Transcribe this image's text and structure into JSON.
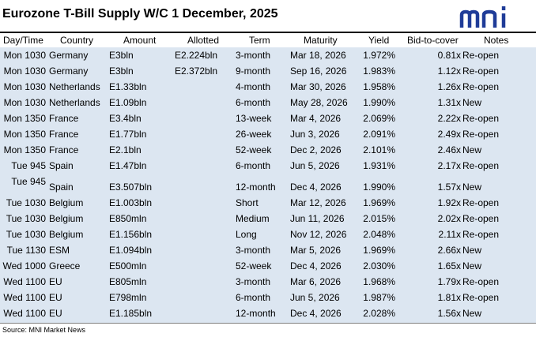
{
  "title": "Eurozone T-Bill Supply W/C 1 December, 2025",
  "logo": {
    "text": "mni",
    "color": "#1f3c98"
  },
  "headers": {
    "day_time": "Day/Time",
    "country": "Country",
    "amount": "Amount",
    "allotted": "Allotted",
    "term": "Term",
    "maturity": "Maturity",
    "yield": "Yield",
    "bid_to_cover": "Bid-to-cover",
    "notes": "Notes"
  },
  "rows": [
    {
      "day_time": "Mon 1030",
      "country": "Germany",
      "amount": "E3bln",
      "allotted": "E2.224bln",
      "term": "3-month",
      "maturity": "Mar 18, 2026",
      "yield": "1.972%",
      "bid_to_cover": "0.81x",
      "notes": "Re-open"
    },
    {
      "day_time": "Mon 1030",
      "country": "Germany",
      "amount": "E3bln",
      "allotted": "E2.372bln",
      "term": "9-month",
      "maturity": "Sep 16, 2026",
      "yield": "1.983%",
      "bid_to_cover": "1.12x",
      "notes": "Re-open"
    },
    {
      "day_time": "Mon 1030",
      "country": "Netherlands",
      "amount": "E1.33bln",
      "allotted": "",
      "term": "4-month",
      "maturity": "Mar 30, 2026",
      "yield": "1.958%",
      "bid_to_cover": "1.26x",
      "notes": "Re-open"
    },
    {
      "day_time": "Mon 1030",
      "country": "Netherlands",
      "amount": "E1.09bln",
      "allotted": "",
      "term": "6-month",
      "maturity": "May 28, 2026",
      "yield": "1.990%",
      "bid_to_cover": "1.31x",
      "notes": "New"
    },
    {
      "day_time": "Mon 1350",
      "country": "France",
      "amount": "E3.4bln",
      "allotted": "",
      "term": "13-week",
      "maturity": "Mar 4, 2026",
      "yield": "2.069%",
      "bid_to_cover": "2.22x",
      "notes": "Re-open"
    },
    {
      "day_time": "Mon 1350",
      "country": "France",
      "amount": "E1.77bln",
      "allotted": "",
      "term": "26-week",
      "maturity": "Jun 3, 2026",
      "yield": "2.091%",
      "bid_to_cover": "2.49x",
      "notes": "Re-open"
    },
    {
      "day_time": "Mon 1350",
      "country": "France",
      "amount": "E2.1bln",
      "allotted": "",
      "term": "52-week",
      "maturity": "Dec 2, 2026",
      "yield": "2.101%",
      "bid_to_cover": "2.46x",
      "notes": "New"
    },
    {
      "day_time": "Tue 945",
      "country": "Spain",
      "amount": "E1.47bln",
      "allotted": "",
      "term": "6-month",
      "maturity": "Jun 5, 2026",
      "yield": "1.931%",
      "bid_to_cover": "2.17x",
      "notes": "Re-open"
    },
    {
      "day_time": "Tue 945",
      "country": "Spain",
      "amount": "E3.507bln",
      "allotted": "",
      "term": "12-month",
      "maturity": "Dec 4, 2026",
      "yield": "1.990%",
      "bid_to_cover": "1.57x",
      "notes": "New"
    },
    {
      "day_time": "Tue 1030",
      "country": "Belgium",
      "amount": "E1.003bln",
      "allotted": "",
      "term": "Short",
      "maturity": "Mar 12, 2026",
      "yield": "1.969%",
      "bid_to_cover": "1.92x",
      "notes": "Re-open"
    },
    {
      "day_time": "Tue 1030",
      "country": "Belgium",
      "amount": "E850mln",
      "allotted": "",
      "term": "Medium",
      "maturity": "Jun 11, 2026",
      "yield": "2.015%",
      "bid_to_cover": "2.02x",
      "notes": "Re-open"
    },
    {
      "day_time": "Tue 1030",
      "country": "Belgium",
      "amount": "E1.156bln",
      "allotted": "",
      "term": "Long",
      "maturity": "Nov 12, 2026",
      "yield": "2.048%",
      "bid_to_cover": "2.11x",
      "notes": "Re-open"
    },
    {
      "day_time": "Tue 1130",
      "country": "ESM",
      "amount": "E1.094bln",
      "allotted": "",
      "term": "3-month",
      "maturity": "Mar 5, 2026",
      "yield": "1.969%",
      "bid_to_cover": "2.66x",
      "notes": "New"
    },
    {
      "day_time": "Wed 1000",
      "country": "Greece",
      "amount": "E500mln",
      "allotted": "",
      "term": "52-week",
      "maturity": "Dec 4, 2026",
      "yield": "2.030%",
      "bid_to_cover": "1.65x",
      "notes": "New"
    },
    {
      "day_time": "Wed 1100",
      "country": "EU",
      "amount": "E805mln",
      "allotted": "",
      "term": "3-month",
      "maturity": "Mar 6, 2026",
      "yield": "1.968%",
      "bid_to_cover": "1.79x",
      "notes": "Re-open"
    },
    {
      "day_time": "Wed 1100",
      "country": "EU",
      "amount": "E798mln",
      "allotted": "",
      "term": "6-month",
      "maturity": "Jun 5, 2026",
      "yield": "1.987%",
      "bid_to_cover": "1.81x",
      "notes": "Re-open"
    },
    {
      "day_time": "Wed 1100",
      "country": "EU",
      "amount": "E1.185bln",
      "allotted": "",
      "term": "12-month",
      "maturity": "Dec 4, 2026",
      "yield": "2.028%",
      "bid_to_cover": "1.56x",
      "notes": "New"
    }
  ],
  "source": "Source: MNI Market News",
  "colors": {
    "row_fill": "#dce6f1",
    "logo_blue": "#1f3c98"
  }
}
